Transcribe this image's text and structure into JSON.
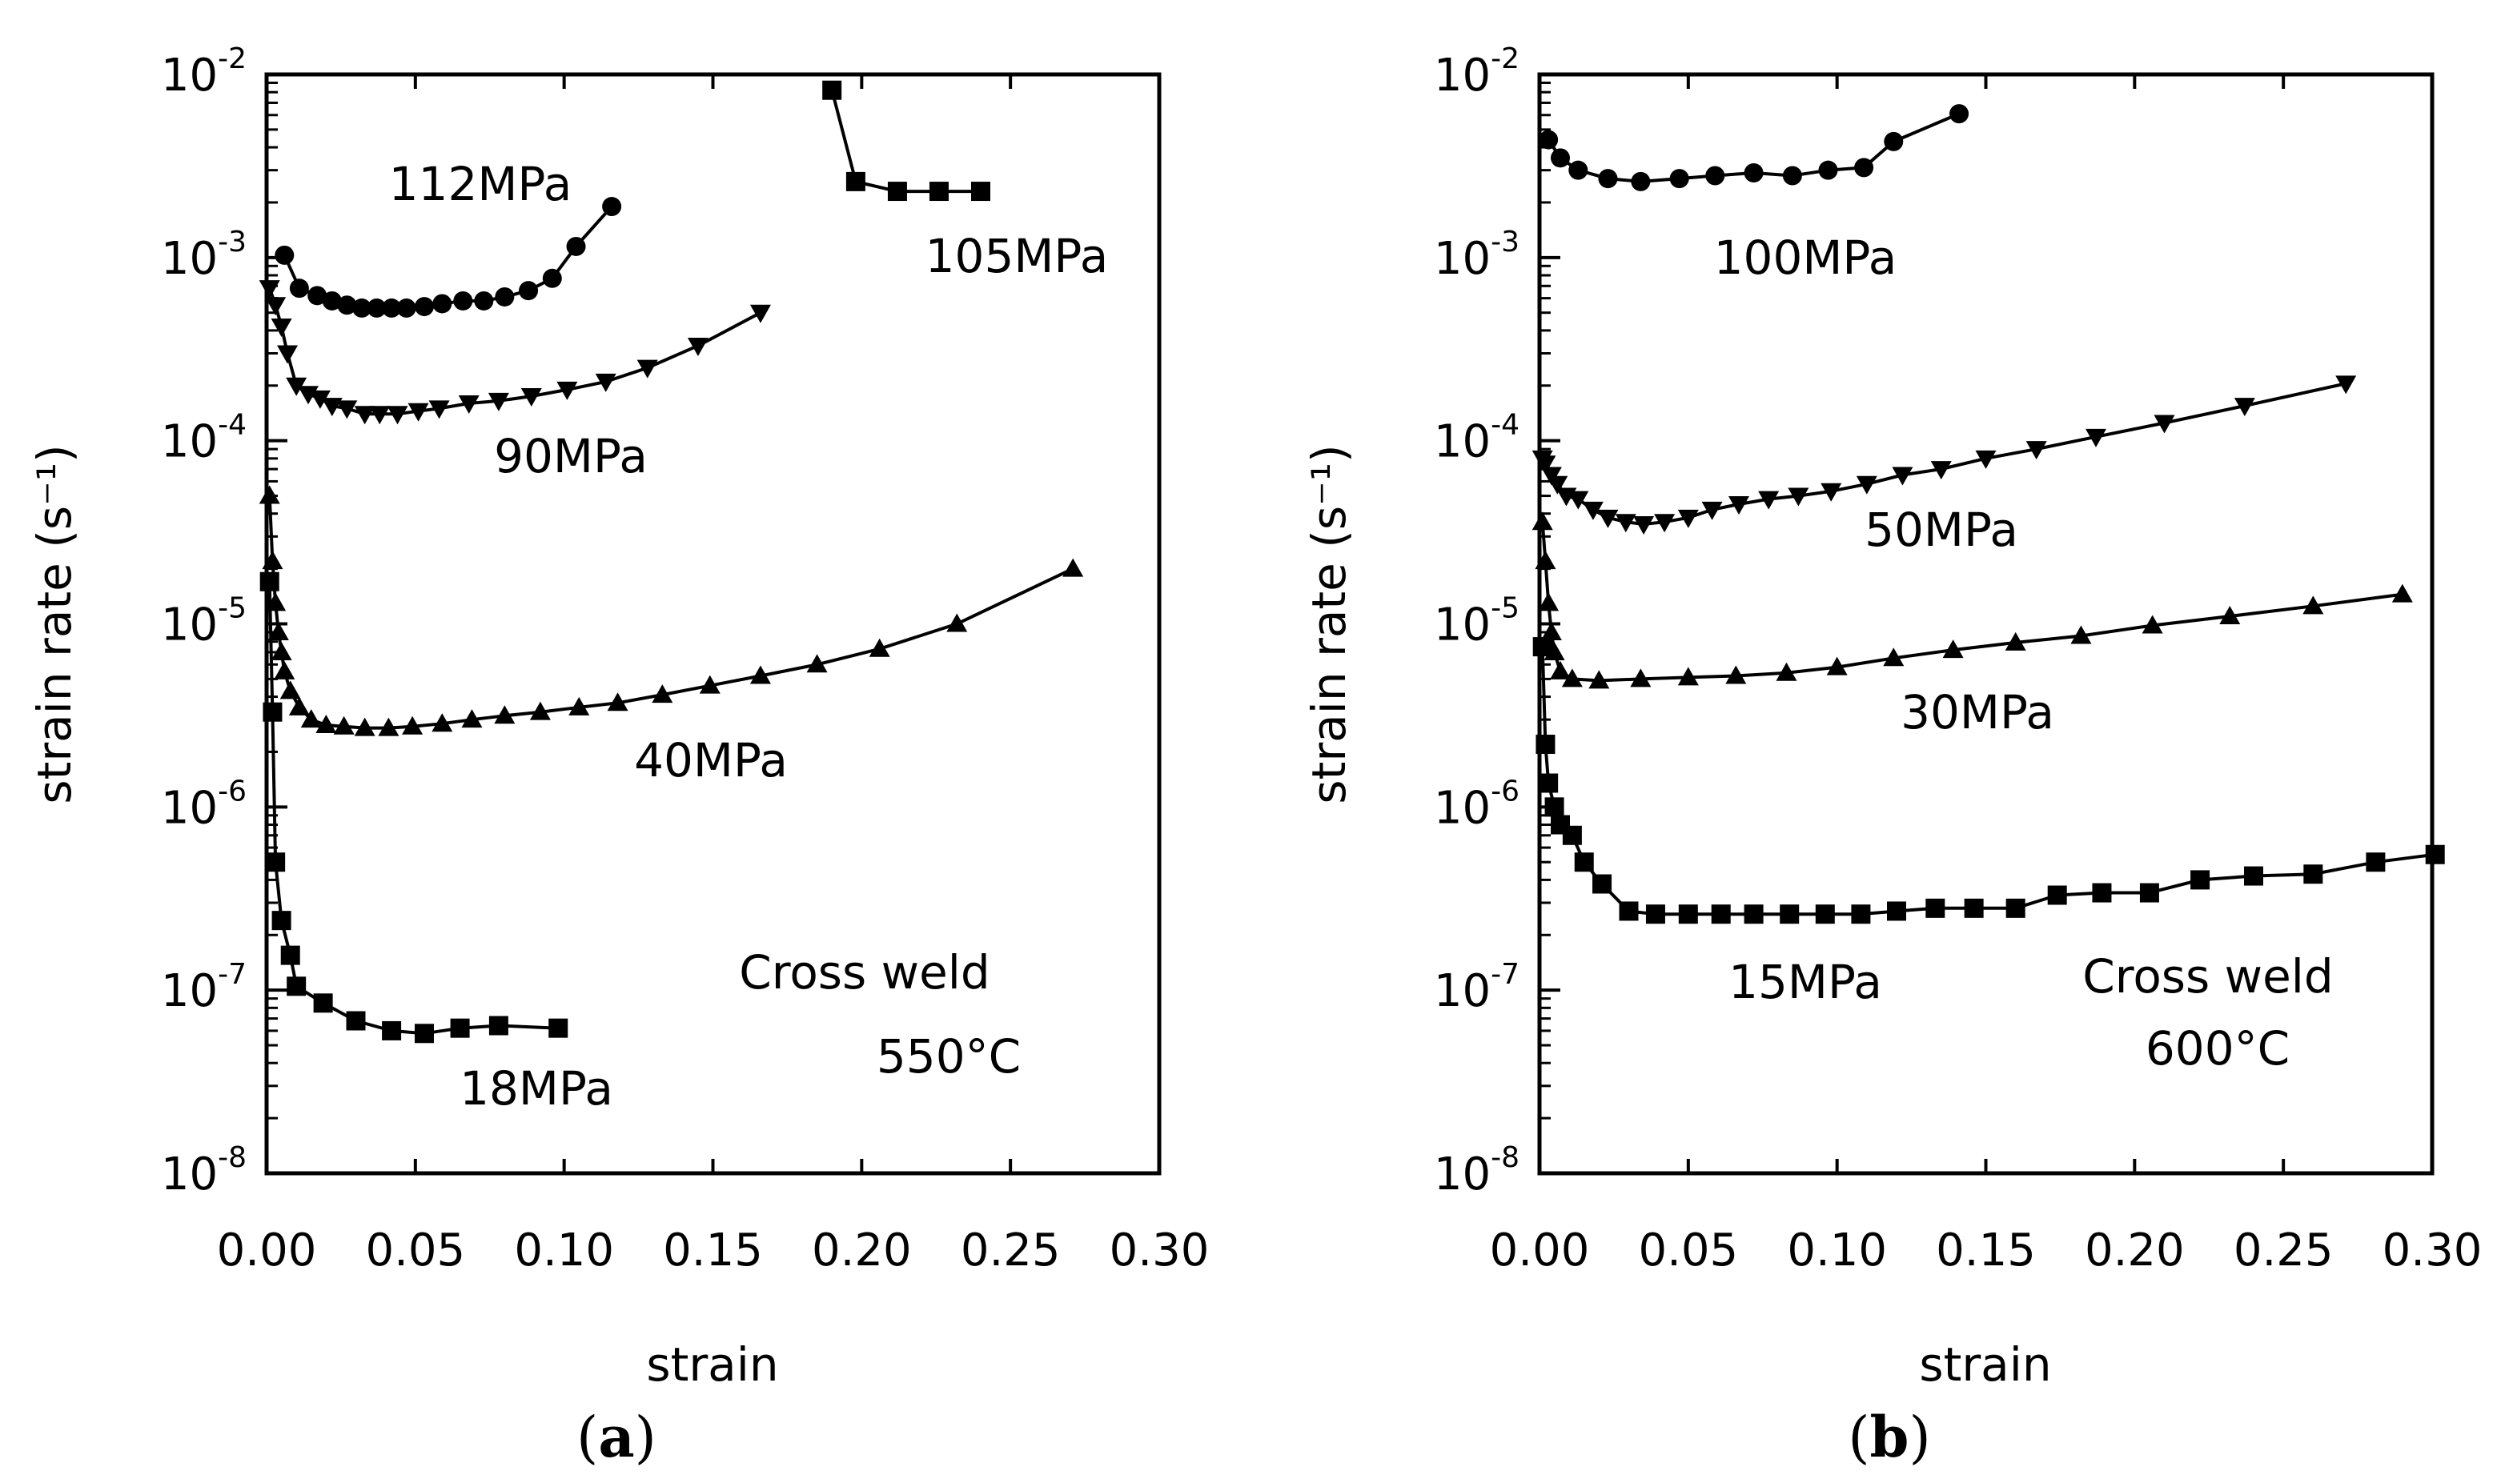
{
  "chart_data": [
    {
      "panel": "(a)",
      "type": "line",
      "xlabel": "strain",
      "ylabel": "strain rate (s⁻¹)",
      "xlim": [
        0.0,
        0.3
      ],
      "ylim": [
        1e-08,
        0.01
      ],
      "yscale": "log",
      "xticks": [
        "0.00",
        "0.05",
        "0.10",
        "0.15",
        "0.20",
        "0.25",
        "0.30"
      ],
      "yticks": [
        {
          "base": "10",
          "exp": "-2",
          "value": 0.01
        },
        {
          "base": "10",
          "exp": "-3",
          "value": 0.001
        },
        {
          "base": "10",
          "exp": "-4",
          "value": 0.0001
        },
        {
          "base": "10",
          "exp": "-5",
          "value": 1e-05
        },
        {
          "base": "10",
          "exp": "-6",
          "value": 1e-06
        },
        {
          "base": "10",
          "exp": "-7",
          "value": 1e-07
        },
        {
          "base": "10",
          "exp": "-8",
          "value": 1e-08
        }
      ],
      "annotation_lines": [
        "Cross  weld",
        "550°C"
      ],
      "series": [
        {
          "name": "112MPa",
          "marker": "circle",
          "x": [
            0.006,
            0.011,
            0.017,
            0.022,
            0.027,
            0.032,
            0.037,
            0.042,
            0.047,
            0.053,
            0.059,
            0.066,
            0.073,
            0.08,
            0.088,
            0.096,
            0.104,
            0.116
          ],
          "y": [
            0.00103,
            0.00068,
            0.00062,
            0.00058,
            0.00055,
            0.00053,
            0.00053,
            0.00053,
            0.00053,
            0.00054,
            0.00056,
            0.00058,
            0.00058,
            0.00061,
            0.00066,
            0.00077,
            0.00115,
            0.0019
          ]
        },
        {
          "name": "105MPa",
          "marker": "square",
          "x": [
            0.19,
            0.198,
            0.212,
            0.226,
            0.24
          ],
          "y": [
            0.0082,
            0.0026,
            0.0023,
            0.0023,
            0.0023
          ]
        },
        {
          "name": "90MPa",
          "marker": "triangle-down",
          "x": [
            0.001,
            0.003,
            0.005,
            0.007,
            0.01,
            0.014,
            0.018,
            0.022,
            0.027,
            0.033,
            0.038,
            0.044,
            0.051,
            0.058,
            0.068,
            0.078,
            0.089,
            0.101,
            0.114,
            0.128,
            0.145,
            0.166
          ],
          "y": [
            0.00068,
            0.00055,
            0.00042,
            0.0003,
            0.0002,
            0.00018,
            0.00017,
            0.000155,
            0.00015,
            0.00014,
            0.00014,
            0.00014,
            0.000145,
            0.00015,
            0.00016,
            0.000165,
            0.000175,
            0.00019,
            0.00021,
            0.00025,
            0.00033,
            0.0005
          ]
        },
        {
          "name": "40MPa",
          "marker": "triangle-up",
          "x": [
            0.001,
            0.002,
            0.003,
            0.004,
            0.005,
            0.006,
            0.008,
            0.011,
            0.015,
            0.02,
            0.026,
            0.033,
            0.041,
            0.049,
            0.059,
            0.069,
            0.08,
            0.092,
            0.105,
            0.118,
            0.133,
            0.149,
            0.166,
            0.185,
            0.206,
            0.232,
            0.271
          ],
          "y": [
            5e-05,
            2.2e-05,
            1.3e-05,
            9e-06,
            7e-06,
            5.5e-06,
            4.3e-06,
            3.5e-06,
            3e-06,
            2.8e-06,
            2.75e-06,
            2.7e-06,
            2.7e-06,
            2.75e-06,
            2.85e-06,
            3e-06,
            3.15e-06,
            3.3e-06,
            3.5e-06,
            3.7e-06,
            4.1e-06,
            4.6e-06,
            5.2e-06,
            6e-06,
            7.3e-06,
            1e-05,
            2e-05
          ]
        },
        {
          "name": "18MPa",
          "marker": "square",
          "x": [
            0.001,
            0.002,
            0.003,
            0.005,
            0.008,
            0.01,
            0.019,
            0.03,
            0.042,
            0.053,
            0.065,
            0.078,
            0.098
          ],
          "y": [
            1.7e-05,
            3.3e-06,
            5e-07,
            2.4e-07,
            1.55e-07,
            1.05e-07,
            8.5e-08,
            6.8e-08,
            6e-08,
            5.8e-08,
            6.2e-08,
            6.4e-08,
            6.2e-08
          ]
        }
      ]
    },
    {
      "panel": "(b)",
      "type": "line",
      "xlabel": "strain",
      "ylabel": "strain rate (s⁻¹)",
      "xlim": [
        0.0,
        0.3
      ],
      "ylim": [
        1e-08,
        0.01
      ],
      "yscale": "log",
      "xticks": [
        "0.00",
        "0.05",
        "0.10",
        "0.15",
        "0.20",
        "0.25",
        "0.30"
      ],
      "yticks": [
        {
          "base": "10",
          "exp": "-2",
          "value": 0.01
        },
        {
          "base": "10",
          "exp": "-3",
          "value": 0.001
        },
        {
          "base": "10",
          "exp": "-4",
          "value": 0.0001
        },
        {
          "base": "10",
          "exp": "-5",
          "value": 1e-05
        },
        {
          "base": "10",
          "exp": "-6",
          "value": 1e-06
        },
        {
          "base": "10",
          "exp": "-7",
          "value": 1e-07
        },
        {
          "base": "10",
          "exp": "-8",
          "value": 1e-08
        }
      ],
      "annotation_lines": [
        "Cross  weld",
        "600°C"
      ],
      "series": [
        {
          "name": "100MPa",
          "marker": "circle",
          "x": [
            0.003,
            0.007,
            0.013,
            0.023,
            0.034,
            0.047,
            0.059,
            0.072,
            0.085,
            0.097,
            0.109,
            0.119,
            0.141
          ],
          "y": [
            0.0044,
            0.0035,
            0.003,
            0.0027,
            0.0026,
            0.0027,
            0.0028,
            0.0029,
            0.0028,
            0.003,
            0.0031,
            0.0043,
            0.0061
          ]
        },
        {
          "name": "50MPa",
          "marker": "triangle-down",
          "x": [
            0.001,
            0.002,
            0.004,
            0.006,
            0.009,
            0.013,
            0.018,
            0.023,
            0.029,
            0.035,
            0.042,
            0.05,
            0.058,
            0.067,
            0.077,
            0.087,
            0.098,
            0.11,
            0.122,
            0.135,
            0.15,
            0.167,
            0.187,
            0.21,
            0.237,
            0.271
          ],
          "y": [
            8e-05,
            7.5e-05,
            6.5e-05,
            5.8e-05,
            5e-05,
            4.8e-05,
            4.2e-05,
            3.8e-05,
            3.6e-05,
            3.5e-05,
            3.6e-05,
            3.8e-05,
            4.2e-05,
            4.5e-05,
            4.8e-05,
            5e-05,
            5.3e-05,
            5.8e-05,
            6.5e-05,
            7e-05,
            8e-05,
            9e-05,
            0.000105,
            0.000125,
            0.000155,
            0.000205
          ]
        },
        {
          "name": "30MPa",
          "marker": "triangle-up",
          "x": [
            0.001,
            0.002,
            0.003,
            0.004,
            0.005,
            0.007,
            0.011,
            0.02,
            0.034,
            0.05,
            0.066,
            0.083,
            0.1,
            0.119,
            0.139,
            0.16,
            0.182,
            0.206,
            0.232,
            0.26,
            0.29
          ],
          "y": [
            3.6e-05,
            2.2e-05,
            1.3e-05,
            9e-06,
            7e-06,
            5.5e-06,
            5e-06,
            4.9e-06,
            5e-06,
            5.1e-06,
            5.2e-06,
            5.4e-06,
            5.8e-06,
            6.5e-06,
            7.2e-06,
            7.9e-06,
            8.6e-06,
            9.8e-06,
            1.1e-05,
            1.25e-05,
            1.45e-05
          ]
        },
        {
          "name": "15MPa",
          "marker": "square",
          "x": [
            0.001,
            0.002,
            0.003,
            0.005,
            0.007,
            0.011,
            0.015,
            0.021,
            0.03,
            0.039,
            0.05,
            0.061,
            0.072,
            0.084,
            0.096,
            0.108,
            0.12,
            0.133,
            0.146,
            0.16,
            0.174,
            0.189,
            0.205,
            0.222,
            0.24,
            0.26,
            0.281,
            0.301
          ],
          "y": [
            7.5e-06,
            2.2e-06,
            1.35e-06,
            1e-06,
            8e-07,
            7e-07,
            5e-07,
            3.8e-07,
            2.7e-07,
            2.6e-07,
            2.6e-07,
            2.6e-07,
            2.6e-07,
            2.6e-07,
            2.6e-07,
            2.6e-07,
            2.7e-07,
            2.8e-07,
            2.8e-07,
            2.8e-07,
            3.3e-07,
            3.4e-07,
            3.4e-07,
            4e-07,
            4.2e-07,
            4.3e-07,
            5e-07,
            5.5e-07
          ]
        }
      ]
    }
  ]
}
